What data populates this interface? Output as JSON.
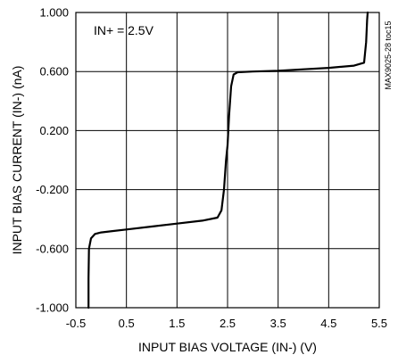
{
  "chart_data": {
    "type": "line",
    "xlabel": "INPUT BIAS VOLTAGE (IN-) (V)",
    "ylabel": "INPUT BIAS CURRENT (IN-) (nA)",
    "annotation": "IN+ = 2.5V",
    "side_label": "MAX9025-28 toc15",
    "xlim": [
      -0.5,
      5.5
    ],
    "ylim": [
      -1.0,
      1.0
    ],
    "x_ticks": [
      "-0.5",
      "0.5",
      "1.5",
      "2.5",
      "3.5",
      "4.5",
      "5.5"
    ],
    "y_ticks": [
      "1.000",
      "0.600",
      "0.200",
      "-0.200",
      "-0.600",
      "-1.000"
    ],
    "grid": true,
    "series": [
      {
        "x": [
          -0.25,
          -0.25,
          -0.24,
          -0.2,
          -0.12,
          0.0,
          0.5,
          1.0,
          1.5,
          2.0,
          2.3,
          2.38,
          2.43,
          2.47,
          2.5,
          2.53,
          2.57,
          2.62,
          2.7,
          3.0,
          3.5,
          4.0,
          4.5,
          5.0,
          5.2,
          5.24,
          5.26,
          5.27
        ],
        "y": [
          -1.0,
          -0.8,
          -0.6,
          -0.53,
          -0.5,
          -0.49,
          -0.47,
          -0.45,
          -0.43,
          -0.41,
          -0.39,
          -0.34,
          -0.2,
          0.0,
          0.1,
          0.3,
          0.5,
          0.58,
          0.595,
          0.6,
          0.605,
          0.615,
          0.625,
          0.64,
          0.66,
          0.8,
          0.95,
          1.0
        ]
      }
    ]
  }
}
